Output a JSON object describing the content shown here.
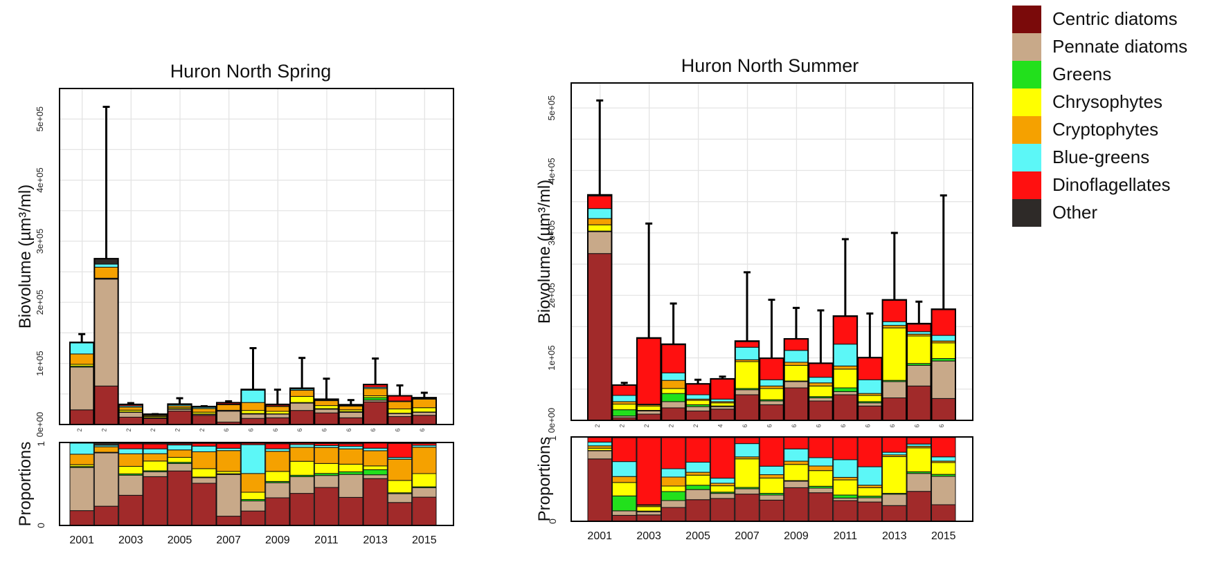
{
  "chart_data": [
    {
      "type": "bar",
      "stacked": true,
      "title": "Huron North Spring",
      "ylabel": "Biovolume (µm³/ml)",
      "ylabel_proportions": "Proportions",
      "ylim": [
        0,
        550000
      ],
      "yticks": [
        "0e+00",
        "1e+05",
        "2e+05",
        "3e+05",
        "4e+05",
        "5e+05"
      ],
      "proportion_ticks": [
        "0",
        "1"
      ],
      "categories": [
        "2001",
        "2002",
        "2003",
        "2004",
        "2005",
        "2006",
        "2007",
        "2008",
        "2009",
        "2010",
        "2011",
        "2012",
        "2013",
        "2014",
        "2015"
      ],
      "xtick_labels": [
        "2001",
        "2003",
        "2005",
        "2007",
        "2009",
        "2011",
        "2013",
        "2015"
      ],
      "sample_sizes": [
        "2",
        "2",
        "2",
        "2",
        "2",
        "2",
        "6",
        "6",
        "6",
        "6",
        "6",
        "6",
        "6",
        "6",
        "6"
      ],
      "grid": true,
      "error_bar_upper": [
        148000,
        520000,
        35000,
        17000,
        43000,
        30000,
        38000,
        125000,
        57000,
        109000,
        75000,
        40000,
        108000,
        64000,
        52000
      ],
      "series": [
        {
          "name": "Centric diatoms",
          "values": [
            24000,
            63000,
            12000,
            10000,
            22000,
            15000,
            4000,
            10000,
            11000,
            23000,
            19000,
            11000,
            37000,
            13000,
            15000
          ]
        },
        {
          "name": "Pennate diatoms",
          "values": [
            70000,
            175000,
            8000,
            1000,
            3000,
            2000,
            18000,
            7000,
            6000,
            12000,
            6000,
            9000,
            3000,
            5000,
            5000
          ]
        },
        {
          "name": "Greens",
          "values": [
            1500,
            500,
            500,
            200,
            500,
            200,
            300,
            1000,
            500,
            1000,
            1000,
            1000,
            4000,
            500,
            500
          ]
        },
        {
          "name": "Chrysophytes",
          "values": [
            3000,
            1000,
            3000,
            2000,
            2000,
            3000,
            1000,
            5000,
            4000,
            10000,
            5000,
            3000,
            3000,
            7000,
            7000
          ]
        },
        {
          "name": "Cryptophytes",
          "values": [
            17000,
            18000,
            5000,
            1500,
            3000,
            6000,
            9000,
            13000,
            8000,
            10000,
            8000,
            6000,
            12000,
            12000,
            14000
          ]
        },
        {
          "name": "Blue-greens",
          "values": [
            18000,
            5000,
            2000,
            1000,
            2000,
            2000,
            1000,
            20000,
            1000,
            2000,
            1000,
            1000,
            2000,
            1000,
            1000
          ]
        },
        {
          "name": "Dinoflagellates",
          "values": [
            0,
            0,
            2000,
            1000,
            500,
            1000,
            2000,
            1000,
            2000,
            1000,
            1000,
            1000,
            4000,
            8000,
            1000
          ]
        },
        {
          "name": "Other",
          "values": [
            1000,
            9000,
            500,
            300,
            500,
            300,
            500,
            500,
            500,
            500,
            500,
            500,
            500,
            500,
            500
          ]
        }
      ]
    },
    {
      "type": "bar",
      "stacked": true,
      "title": "Huron North Summer",
      "ylabel": "Biovolume (µm³/ml)",
      "ylabel_proportions": "Proportions",
      "ylim": [
        0,
        540000
      ],
      "yticks": [
        "0e+00",
        "1e+05",
        "2e+05",
        "3e+05",
        "4e+05",
        "5e+05"
      ],
      "proportion_ticks": [
        "0",
        "1"
      ],
      "categories": [
        "2001",
        "2002",
        "2003",
        "2004",
        "2005",
        "2006",
        "2007",
        "2008",
        "2009",
        "2010",
        "2011",
        "2012",
        "2013",
        "2014",
        "2015"
      ],
      "xtick_labels": [
        "2001",
        "2003",
        "2005",
        "2007",
        "2009",
        "2011",
        "2013",
        "2015"
      ],
      "sample_sizes": [
        "2",
        "2",
        "2",
        "2",
        "2",
        "4",
        "6",
        "6",
        "6",
        "6",
        "6",
        "6",
        "6",
        "6",
        "6"
      ],
      "grid": true,
      "error_bar_upper": [
        512000,
        60000,
        315000,
        187000,
        65000,
        70000,
        237000,
        193000,
        180000,
        176000,
        290000,
        171000,
        300000,
        190000,
        360000
      ],
      "series": [
        {
          "name": "Centric diatoms",
          "values": [
            267000,
            4000,
            10000,
            20000,
            15000,
            18000,
            41000,
            25000,
            52000,
            31000,
            41000,
            23000,
            36000,
            55000,
            35000
          ]
        },
        {
          "name": "Pennate diatoms",
          "values": [
            35000,
            3000,
            5000,
            10000,
            7000,
            4000,
            8000,
            6000,
            10000,
            5000,
            5000,
            5000,
            26000,
            33000,
            60000
          ]
        },
        {
          "name": "Greens",
          "values": [
            1000,
            10000,
            1000,
            13000,
            3000,
            1000,
            2000,
            2000,
            1000,
            2000,
            6000,
            2000,
            2000,
            3000,
            4000
          ]
        },
        {
          "name": "Chrysophytes",
          "values": [
            10000,
            9000,
            7000,
            8000,
            7000,
            5000,
            43000,
            18000,
            25000,
            17000,
            30000,
            10000,
            84000,
            44000,
            25000
          ]
        },
        {
          "name": "Cryptophytes",
          "values": [
            10000,
            4000,
            2000,
            13000,
            2000,
            2000,
            3000,
            4000,
            5000,
            5000,
            5000,
            3000,
            4000,
            3000,
            3000
          ]
        },
        {
          "name": "Blue-greens",
          "values": [
            16000,
            10000,
            1000,
            12000,
            7000,
            4000,
            20000,
            10000,
            19000,
            9000,
            35000,
            22000,
            6000,
            4000,
            9000
          ]
        },
        {
          "name": "Dinoflagellates",
          "values": [
            20000,
            16000,
            105000,
            45000,
            17000,
            32000,
            9000,
            34000,
            18000,
            22000,
            44000,
            35000,
            34000,
            12000,
            41000
          ]
        },
        {
          "name": "Other",
          "values": [
            2000,
            500,
            1000,
            1000,
            500,
            500,
            1000,
            500,
            500,
            500,
            1000,
            500,
            1000,
            1000,
            1000
          ]
        }
      ]
    }
  ],
  "legend": {
    "items": [
      {
        "label": "Centric diatoms",
        "color": "#7a0a0a"
      },
      {
        "label": "Pennate diatoms",
        "color": "#c8a989"
      },
      {
        "label": "Greens",
        "color": "#22e01c"
      },
      {
        "label": "Chrysophytes",
        "color": "#ffff00"
      },
      {
        "label": "Cryptophytes",
        "color": "#f5a100"
      },
      {
        "label": "Blue-greens",
        "color": "#5cf7f7"
      },
      {
        "label": "Dinoflagellates",
        "color": "#ff1010"
      },
      {
        "label": "Other",
        "color": "#2e2a28"
      }
    ]
  },
  "bar_colors": [
    "#a12a2a",
    "#c8a989",
    "#22e01c",
    "#ffff00",
    "#f5a100",
    "#5cf7f7",
    "#ff1010",
    "#2e2a28"
  ]
}
